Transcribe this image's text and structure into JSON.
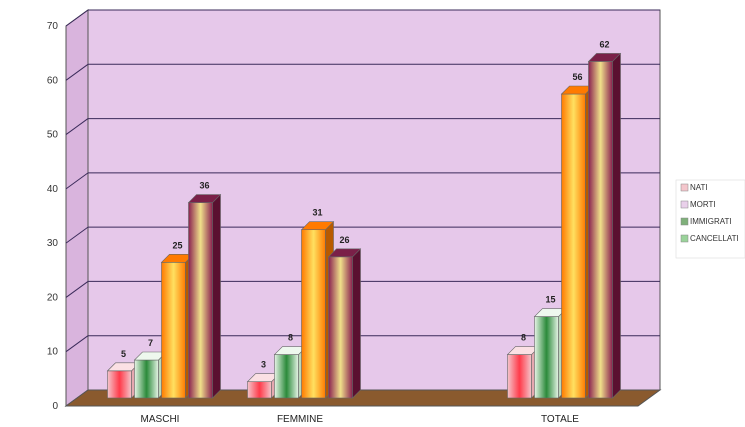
{
  "chart_data": {
    "type": "bar",
    "categories": [
      "MASCHI",
      "FEMMINE",
      "TOTALE"
    ],
    "series": [
      {
        "name": "NATI",
        "values": [
          5,
          3,
          8
        ]
      },
      {
        "name": "MORTI",
        "values": [
          7,
          8,
          15
        ]
      },
      {
        "name": "IMMIGRATI",
        "values": [
          25,
          31,
          56
        ]
      },
      {
        "name": "CANCELLATI",
        "values": [
          36,
          26,
          62
        ]
      }
    ],
    "data_labels": [
      [
        "5",
        "3",
        "8"
      ],
      [
        "7",
        "8",
        "15"
      ],
      [
        "25",
        "31",
        "56"
      ],
      [
        "36",
        "26",
        "62"
      ]
    ],
    "yticks": [
      "0",
      "10",
      "20",
      "30",
      "40",
      "50",
      "60",
      "70"
    ],
    "ylim": [
      0,
      70
    ],
    "grid": true,
    "legend_position": "right",
    "colors": {
      "plot_wall": "#e6c8ea",
      "side_wall": "#d9b4dd",
      "floor": "#8a5a2e",
      "gridline": "#3a2a5a",
      "series": [
        "#f7c9cf",
        "#d8f0d8",
        "#ff9a00",
        "#9b2d5c"
      ]
    }
  }
}
